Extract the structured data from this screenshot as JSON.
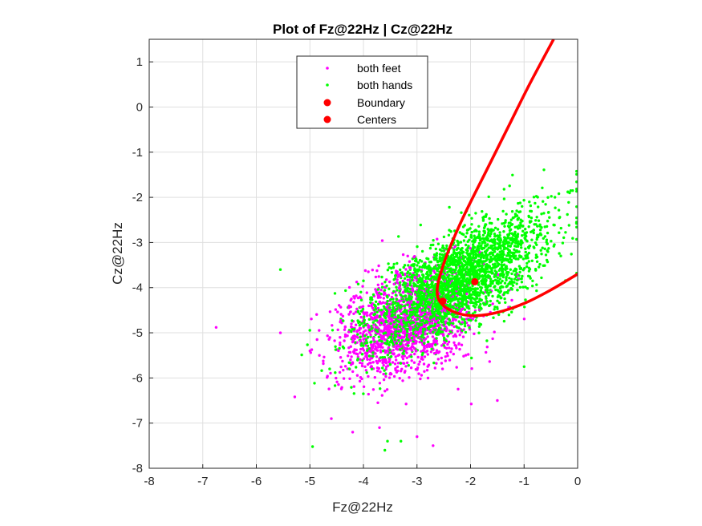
{
  "chart_data": {
    "type": "scatter",
    "title": "Plot of Fz@22Hz | Cz@22Hz",
    "xlabel": "Fz@22Hz",
    "ylabel": "Cz@22Hz",
    "xlim": [
      -8,
      0
    ],
    "ylim": [
      -8,
      1.5
    ],
    "xticks": [
      "-8",
      "-7",
      "-6",
      "-5",
      "-4",
      "-3",
      "-2",
      "-1",
      "0"
    ],
    "yticks": [
      "1",
      "0",
      "-1",
      "-2",
      "-3",
      "-4",
      "-5",
      "-6",
      "-7",
      "-8"
    ],
    "grid": true,
    "legend_position": "top-center",
    "legend": [
      {
        "label": "both feet",
        "marker": "point",
        "color": "#ff00ff"
      },
      {
        "label": "both hands",
        "marker": "point",
        "color": "#00ff00"
      },
      {
        "label": "Boundary",
        "marker": "dot",
        "color": "#ff0000"
      },
      {
        "label": "Centers",
        "marker": "dot",
        "color": "#ff0000"
      }
    ],
    "series": [
      {
        "name": "both feet",
        "color": "#ff00ff",
        "cluster": {
          "mean": [
            -3.2,
            -4.8
          ],
          "sd": [
            0.65,
            0.6
          ],
          "rho": 0.35,
          "n": 1500
        },
        "outliers": [
          [
            -6.75,
            -4.88
          ],
          [
            -5.55,
            -5.0
          ],
          [
            -5.0,
            -5.4
          ],
          [
            -2.7,
            -7.5
          ],
          [
            -4.2,
            -7.2
          ],
          [
            -3.0,
            -7.3
          ],
          [
            -1.5,
            -6.5
          ],
          [
            -4.6,
            -6.9
          ],
          [
            -3.7,
            -7.1
          ]
        ]
      },
      {
        "name": "both hands",
        "color": "#00ff00",
        "cluster": {
          "mean": [
            -2.3,
            -3.9
          ],
          "sd": [
            0.85,
            0.75
          ],
          "rho": 0.72,
          "n": 2600
        },
        "outliers": [
          [
            -5.55,
            -3.6
          ],
          [
            -4.95,
            -7.52
          ],
          [
            -3.3,
            -7.4
          ],
          [
            -3.55,
            -7.4
          ],
          [
            -3.6,
            -7.6
          ],
          [
            -1.0,
            -5.75
          ],
          [
            -0.35,
            -1.92
          ],
          [
            -0.15,
            -1.9
          ]
        ]
      },
      {
        "name": "Centers",
        "color": "#ff0000",
        "points": [
          [
            -1.92,
            -3.87
          ],
          [
            -2.52,
            -4.3
          ]
        ]
      },
      {
        "name": "Boundary",
        "color": "#ff0000",
        "curve": [
          [
            -0.45,
            1.5
          ],
          [
            -0.9,
            0.5
          ],
          [
            -1.3,
            -0.45
          ],
          [
            -1.7,
            -1.4
          ],
          [
            -2.1,
            -2.35
          ],
          [
            -2.4,
            -3.15
          ],
          [
            -2.55,
            -3.65
          ],
          [
            -2.62,
            -4.0
          ],
          [
            -2.6,
            -4.25
          ],
          [
            -2.45,
            -4.45
          ],
          [
            -2.2,
            -4.58
          ],
          [
            -1.9,
            -4.62
          ],
          [
            -1.5,
            -4.55
          ],
          [
            -1.0,
            -4.35
          ],
          [
            -0.5,
            -4.05
          ],
          [
            0.0,
            -3.7
          ]
        ]
      }
    ]
  }
}
